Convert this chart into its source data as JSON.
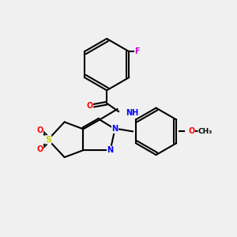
{
  "background_color": "#f0f0f0",
  "bond_color": "#000000",
  "atom_colors": {
    "O": "#ff0000",
    "N": "#0000ff",
    "S": "#cccc00",
    "F": "#cc00cc",
    "H": "#008080",
    "C": "#000000"
  },
  "figsize": [
    3.0,
    3.0
  ],
  "dpi": 100
}
